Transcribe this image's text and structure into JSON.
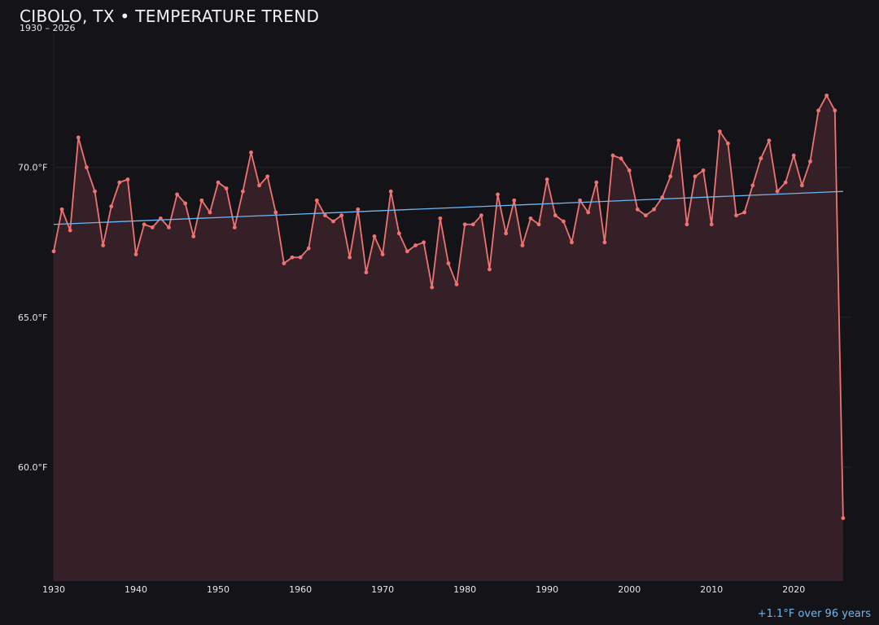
{
  "chart_data": {
    "type": "line",
    "title": "CIBOLO, TX • TEMPERATURE TREND",
    "subtitle": "1930 – 2026",
    "xlabel": "",
    "ylabel": "",
    "xlim": [
      1930,
      2027
    ],
    "ylim": [
      56.2,
      74.5
    ],
    "x_ticks": [
      1930,
      1940,
      1950,
      1960,
      1970,
      1980,
      1990,
      2000,
      2010,
      2020
    ],
    "x_tick_labels": [
      "1930",
      "1940",
      "1950",
      "1960",
      "1970",
      "1980",
      "1990",
      "2000",
      "2010",
      "2020"
    ],
    "y_ticks": [
      60,
      65,
      70
    ],
    "y_tick_labels": [
      "60.0°F",
      "65.0°F",
      "70.0°F"
    ],
    "grid": true,
    "legend": "none",
    "colors": {
      "background": "#131318",
      "series": "#f07373",
      "area_fill": "#352027",
      "trend": "#6db8f2",
      "grid": "#25252d",
      "text": "#e6e6e6"
    },
    "series": [
      {
        "x": [
          1930,
          1931,
          1932,
          1933,
          1934,
          1935,
          1936,
          1937,
          1938,
          1939,
          1940,
          1941,
          1942,
          1943,
          1944,
          1945,
          1946,
          1947,
          1948,
          1949,
          1950,
          1951,
          1952,
          1953,
          1954,
          1955,
          1956,
          1957,
          1958,
          1959,
          1960,
          1961,
          1962,
          1963,
          1964,
          1965,
          1966,
          1967,
          1968,
          1969,
          1970,
          1971,
          1972,
          1973,
          1974,
          1975,
          1976,
          1977,
          1978,
          1979,
          1980,
          1981,
          1982,
          1983,
          1984,
          1985,
          1986,
          1987,
          1988,
          1989,
          1990,
          1991,
          1992,
          1993,
          1994,
          1995,
          1996,
          1997,
          1998,
          1999,
          2000,
          2001,
          2002,
          2003,
          2004,
          2005,
          2006,
          2007,
          2008,
          2009,
          2010,
          2011,
          2012,
          2013,
          2014,
          2015,
          2016,
          2017,
          2018,
          2019,
          2020,
          2021,
          2022,
          2023,
          2024,
          2025,
          2026
        ],
        "y": [
          67.2,
          68.6,
          67.9,
          71.0,
          70.0,
          69.2,
          67.4,
          68.7,
          69.5,
          69.6,
          67.1,
          68.1,
          68.0,
          68.3,
          68.0,
          69.1,
          68.8,
          67.7,
          68.9,
          68.5,
          69.5,
          69.3,
          68.0,
          69.2,
          70.5,
          69.4,
          69.7,
          68.5,
          66.8,
          67.0,
          67.0,
          67.3,
          68.9,
          68.4,
          68.2,
          68.4,
          67.0,
          68.6,
          66.5,
          67.7,
          67.1,
          69.2,
          67.8,
          67.2,
          67.4,
          67.5,
          66.0,
          68.3,
          66.8,
          66.1,
          68.1,
          68.1,
          68.4,
          66.6,
          69.1,
          67.8,
          68.9,
          67.4,
          68.3,
          68.1,
          69.6,
          68.4,
          68.2,
          67.5,
          68.9,
          68.5,
          69.5,
          67.5,
          70.4,
          70.3,
          69.9,
          68.6,
          68.4,
          68.6,
          69.0,
          69.7,
          70.9,
          68.1,
          69.7,
          69.9,
          68.1,
          71.2,
          70.8,
          68.4,
          68.5,
          69.4,
          70.3,
          70.9,
          69.2,
          69.5,
          70.4,
          69.4,
          70.2,
          71.9,
          72.4,
          71.9,
          58.3
        ]
      }
    ],
    "trend": {
      "start": [
        1930,
        68.1
      ],
      "end": [
        2026,
        69.2
      ],
      "note": "+1.1°F over 96 years"
    }
  }
}
